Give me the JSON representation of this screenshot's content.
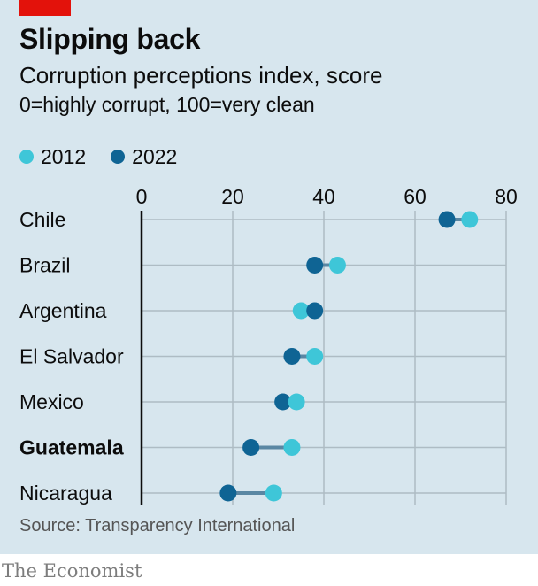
{
  "header": {
    "title": "Slipping back",
    "subtitle": "Corruption perceptions index, score",
    "subtitle2": "0=highly corrupt, 100=very clean"
  },
  "legend": [
    {
      "label": "2012",
      "color": "#3ec6d8"
    },
    {
      "label": "2022",
      "color": "#0f6494"
    }
  ],
  "source": "Source: Transparency International",
  "brand": "The Economist",
  "colors": {
    "background": "#d7e6ee",
    "brand_red": "#e3120b",
    "connector": "#5a87a3",
    "gridline": "#aebcc4",
    "axis": "#0c0c0c"
  },
  "chart_data": {
    "type": "dot-plot",
    "title": "Slipping back",
    "subtitle": "Corruption perceptions index, score",
    "xlim": [
      0,
      80
    ],
    "xticks": [
      0,
      20,
      40,
      60,
      80
    ],
    "grid": true,
    "legend_position": "top-left",
    "categories": [
      "Chile",
      "Brazil",
      "Argentina",
      "El Salvador",
      "Mexico",
      "Guatemala",
      "Nicaragua"
    ],
    "highlight": "Guatemala",
    "series": [
      {
        "name": "2012",
        "values": [
          72,
          43,
          35,
          38,
          34,
          33,
          29
        ]
      },
      {
        "name": "2022",
        "values": [
          67,
          38,
          38,
          33,
          31,
          24,
          19
        ]
      }
    ]
  }
}
